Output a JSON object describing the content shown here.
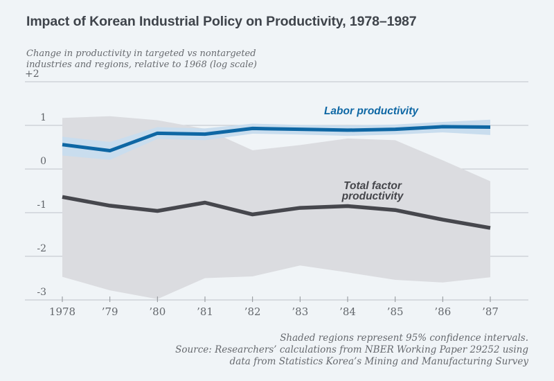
{
  "page": {
    "background_color": "#f0f4f7"
  },
  "header": {
    "title": "Impact of Korean Industrial Policy on Productivity, 1978–1987"
  },
  "chart_data": {
    "type": "line",
    "title": "Impact of Korean Industrial Policy on Productivity, 1978–1987",
    "subtitle_line1": "Change in productivity in targeted vs nontargeted",
    "subtitle_line2": "industries and regions, relative to 1968 (log scale)",
    "x": [
      1978,
      1979,
      1980,
      1981,
      1982,
      1983,
      1984,
      1985,
      1986,
      1987
    ],
    "xtick_labels": [
      "1978",
      "’79",
      "’80",
      "’81",
      "’82",
      "’83",
      "’84",
      "’85",
      "’86",
      "’87"
    ],
    "yticks": [
      {
        "value": 2,
        "label": "+2"
      },
      {
        "value": 1,
        "label": "1"
      },
      {
        "value": 0,
        "label": "0"
      },
      {
        "value": -1,
        "label": "-1"
      },
      {
        "value": -2,
        "label": "-2"
      },
      {
        "value": -3,
        "label": "-3"
      }
    ],
    "ylim": [
      -3,
      2
    ],
    "grid": true,
    "legend_position": "inline-annotations",
    "series": [
      {
        "name": "Labor productivity",
        "color": "#0e67a4",
        "band_color": "#c9ddee",
        "line_width": 5,
        "values": [
          0.56,
          0.42,
          0.82,
          0.8,
          0.93,
          0.91,
          0.89,
          0.91,
          0.97,
          0.96
        ],
        "ci_upper": [
          0.74,
          0.62,
          0.96,
          0.93,
          1.04,
          1.01,
          1.0,
          1.02,
          1.08,
          1.13
        ],
        "ci_lower": [
          0.31,
          0.21,
          0.69,
          0.66,
          0.81,
          0.79,
          0.76,
          0.79,
          0.84,
          0.78
        ]
      },
      {
        "name": "Total factor productivity",
        "color": "#46474d",
        "band_color": "#dbdce0",
        "line_width": 5.5,
        "values": [
          -0.64,
          -0.84,
          -0.96,
          -0.77,
          -1.04,
          -0.89,
          -0.85,
          -0.94,
          -1.16,
          -1.35
        ],
        "ci_upper": [
          1.17,
          1.21,
          1.12,
          0.92,
          0.43,
          0.55,
          0.7,
          0.66,
          0.2,
          -0.28
        ],
        "ci_lower": [
          -2.47,
          -2.78,
          -2.98,
          -2.5,
          -2.46,
          -2.21,
          -2.37,
          -2.54,
          -2.6,
          -2.48
        ]
      }
    ],
    "annotations": {
      "labor_label": "Labor productivity",
      "tfp_label_line1": "Total factor",
      "tfp_label_line2": "productivity"
    },
    "style": {
      "grid_color": "#c8ccd2",
      "tick_color": "#8d9196",
      "axis_text_color": "#5f6368"
    }
  },
  "footnotes": {
    "line1": "Shaded regions represent 95% confidence intervals.",
    "line2": "Source: Researchers’ calculations from NBER Working Paper 29252 using",
    "line3": "data from Statistics Korea’s Mining and Manufacturing Survey"
  }
}
